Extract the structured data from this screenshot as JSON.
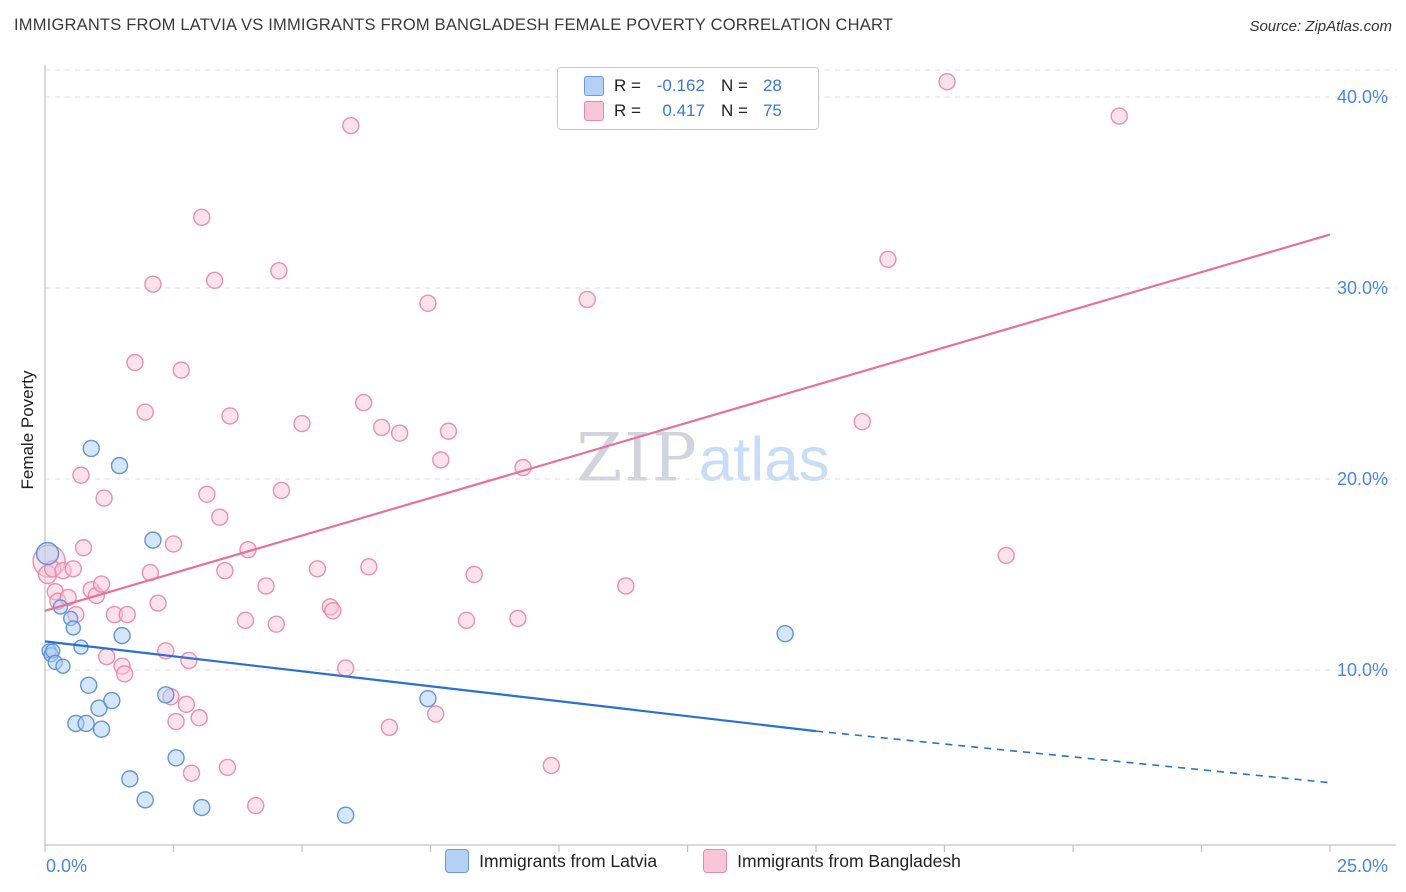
{
  "header": {
    "title": "IMMIGRANTS FROM LATVIA VS IMMIGRANTS FROM BANGLADESH FEMALE POVERTY CORRELATION CHART",
    "source": "Source: ZipAtlas.com"
  },
  "watermark": {
    "zip": "ZIP",
    "atlas": "atlas"
  },
  "legend_box": {
    "rows": [
      {
        "r_label": "R =",
        "r_value": "-0.162",
        "n_label": "N =",
        "n_value": "28"
      },
      {
        "r_label": "R =",
        "r_value": "0.417",
        "n_label": "N =",
        "n_value": "75"
      }
    ]
  },
  "bottom_legend": {
    "items": [
      {
        "label": "Immigrants from Latvia"
      },
      {
        "label": "Immigrants from Bangladesh"
      }
    ]
  },
  "axes": {
    "y_label": "Female Poverty"
  },
  "colors": {
    "latvia_fill": "#aecdf3",
    "latvia_stroke": "#5c8fd6",
    "latvia_trend": "#2a6fd4",
    "bangladesh_fill": "#f9c6d8",
    "bangladesh_stroke": "#e88aad",
    "bangladesh_trend": "#e8709a",
    "axis_tick_label": "#4a86e0",
    "gridline": "#dddddd",
    "axis_line": "#c5c5c5"
  },
  "chart_data": {
    "type": "scatter",
    "title": "Immigrants from Latvia vs Immigrants from Bangladesh Female Poverty Correlation",
    "xlabel": "",
    "ylabel": "Female Poverty",
    "x_range": [
      0,
      25
    ],
    "y_range": [
      0.8,
      42.7
    ],
    "grid": true,
    "legend_position": "bottom",
    "x_ticks": [
      {
        "value": 0,
        "label": "0.0%"
      },
      {
        "value": 25,
        "label": "25.0%"
      }
    ],
    "y_ticks": [
      {
        "value": 40,
        "label": "40.0%"
      },
      {
        "value": 30,
        "label": "30.0%"
      },
      {
        "value": 20,
        "label": "20.0%"
      },
      {
        "value": 10,
        "label": "10.0%"
      }
    ],
    "series": [
      {
        "name": "Immigrants from Bangladesh",
        "R": 0.417,
        "N": 75,
        "fill": "#f9c6d8",
        "stroke": "#e88aad",
        "trend_color": "#e8709a",
        "trend": {
          "solid": [
            [
              0,
              13.1
            ],
            [
              25,
              32.8
            ]
          ]
        },
        "points": [
          [
            0.08,
            15.7,
            16
          ],
          [
            0.05,
            15.0,
            9
          ],
          [
            0.15,
            15.3,
            8
          ],
          [
            0.2,
            14.1,
            8
          ],
          [
            0.25,
            13.6,
            8
          ],
          [
            0.35,
            15.2,
            8
          ],
          [
            0.45,
            13.8,
            8
          ],
          [
            0.55,
            15.3,
            8
          ],
          [
            0.6,
            12.9,
            8
          ],
          [
            0.7,
            20.2,
            8
          ],
          [
            0.75,
            16.4,
            8
          ],
          [
            0.9,
            14.2,
            8
          ],
          [
            1.0,
            13.9,
            8
          ],
          [
            1.1,
            14.5,
            8
          ],
          [
            1.15,
            19.0,
            8
          ],
          [
            1.2,
            10.7,
            8
          ],
          [
            1.35,
            12.9,
            8
          ],
          [
            1.5,
            10.2,
            8
          ],
          [
            1.55,
            9.8,
            8
          ],
          [
            1.6,
            12.9,
            8
          ],
          [
            1.75,
            26.1,
            8
          ],
          [
            1.95,
            23.5,
            8
          ],
          [
            2.05,
            15.1,
            8
          ],
          [
            2.1,
            30.2,
            8
          ],
          [
            2.2,
            13.5,
            8
          ],
          [
            2.35,
            11.0,
            8
          ],
          [
            2.45,
            8.6,
            8
          ],
          [
            2.5,
            16.6,
            8
          ],
          [
            2.55,
            7.3,
            8
          ],
          [
            2.65,
            25.7,
            8
          ],
          [
            2.75,
            8.2,
            8
          ],
          [
            2.8,
            10.5,
            8
          ],
          [
            2.85,
            4.6,
            8
          ],
          [
            3.0,
            7.5,
            8
          ],
          [
            3.05,
            33.7,
            8
          ],
          [
            3.15,
            19.2,
            8
          ],
          [
            3.3,
            30.4,
            8
          ],
          [
            3.4,
            18.0,
            8
          ],
          [
            3.5,
            15.2,
            8
          ],
          [
            3.55,
            4.9,
            8
          ],
          [
            3.6,
            23.3,
            8
          ],
          [
            3.9,
            12.6,
            8
          ],
          [
            3.95,
            16.3,
            8
          ],
          [
            4.1,
            2.9,
            8
          ],
          [
            4.3,
            14.4,
            8
          ],
          [
            4.5,
            12.4,
            8
          ],
          [
            4.55,
            30.9,
            8
          ],
          [
            4.6,
            19.4,
            8
          ],
          [
            5.0,
            22.9,
            8
          ],
          [
            5.3,
            15.3,
            8
          ],
          [
            5.55,
            13.3,
            8
          ],
          [
            5.6,
            13.1,
            8
          ],
          [
            5.85,
            10.1,
            8
          ],
          [
            5.95,
            38.5,
            8
          ],
          [
            6.2,
            24.0,
            8
          ],
          [
            6.3,
            15.4,
            8
          ],
          [
            6.55,
            22.7,
            8
          ],
          [
            6.7,
            7.0,
            8
          ],
          [
            6.9,
            22.4,
            8
          ],
          [
            7.45,
            29.2,
            8
          ],
          [
            7.6,
            7.7,
            8
          ],
          [
            7.7,
            21.0,
            8
          ],
          [
            7.85,
            22.5,
            8
          ],
          [
            8.2,
            12.6,
            8
          ],
          [
            8.35,
            15.0,
            8
          ],
          [
            9.2,
            12.7,
            8
          ],
          [
            9.3,
            20.6,
            8
          ],
          [
            9.85,
            5.0,
            8
          ],
          [
            10.55,
            29.4,
            8
          ],
          [
            11.3,
            14.4,
            8
          ],
          [
            15.9,
            23.0,
            8
          ],
          [
            16.4,
            31.5,
            8
          ],
          [
            17.55,
            40.8,
            8
          ],
          [
            18.7,
            16.0,
            8
          ],
          [
            20.9,
            39.0,
            8
          ]
        ]
      },
      {
        "name": "Immigrants from Latvia",
        "R": -0.162,
        "N": 28,
        "fill": "#aecdf3",
        "stroke": "#5c8fd6",
        "trend_color": "#2a6fd4",
        "trend": {
          "solid": [
            [
              0,
              11.5
            ],
            [
              15,
              6.8
            ]
          ],
          "dashed": [
            [
              15,
              6.8
            ],
            [
              25,
              4.1
            ]
          ]
        },
        "points": [
          [
            0.05,
            16.1,
            11
          ],
          [
            0.08,
            11.0,
            7
          ],
          [
            0.12,
            10.8,
            7
          ],
          [
            0.15,
            11.0,
            7
          ],
          [
            0.2,
            10.4,
            7
          ],
          [
            0.3,
            13.3,
            7
          ],
          [
            0.35,
            10.2,
            7
          ],
          [
            0.5,
            12.7,
            7
          ],
          [
            0.55,
            12.2,
            7
          ],
          [
            0.6,
            7.2,
            8
          ],
          [
            0.7,
            11.2,
            7
          ],
          [
            0.8,
            7.2,
            8
          ],
          [
            0.85,
            9.2,
            8
          ],
          [
            0.9,
            21.6,
            8
          ],
          [
            1.05,
            8.0,
            8
          ],
          [
            1.1,
            6.9,
            8
          ],
          [
            1.3,
            8.4,
            8
          ],
          [
            1.45,
            20.7,
            8
          ],
          [
            1.5,
            11.8,
            8
          ],
          [
            1.65,
            4.3,
            8
          ],
          [
            1.95,
            3.2,
            8
          ],
          [
            2.1,
            16.8,
            8
          ],
          [
            2.35,
            8.7,
            8
          ],
          [
            2.55,
            5.4,
            8
          ],
          [
            3.05,
            2.8,
            8
          ],
          [
            5.85,
            2.4,
            8
          ],
          [
            7.45,
            8.5,
            8
          ],
          [
            14.4,
            11.9,
            8
          ]
        ]
      }
    ]
  }
}
